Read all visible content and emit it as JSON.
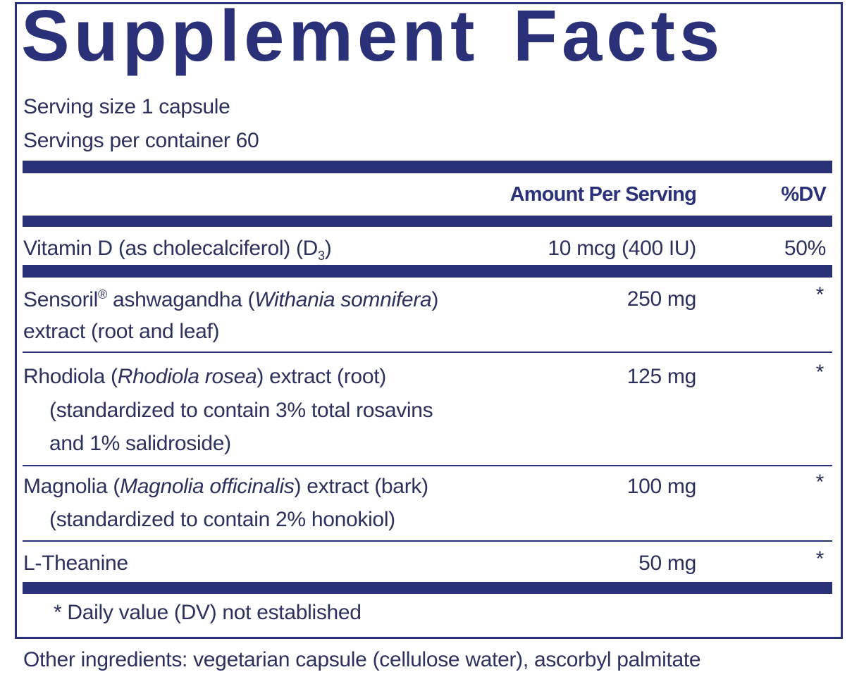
{
  "title": "Supplement Facts",
  "serving_size": "Serving size  1 capsule",
  "servings_per_container": "Servings per container  60",
  "header": {
    "amount": "Amount Per Serving",
    "dv": "%DV"
  },
  "rows": [
    {
      "name": "Vitamin D (as cholecalciferol) (D",
      "sub": "3",
      "sub_close": ")",
      "amount": "10 mcg (400 IU)",
      "dv": "50%"
    },
    {
      "name_a": "Sensoril",
      "sup": "®",
      "name_b": " ashwagandha (",
      "latin": "Withania somnifera",
      "name_c": ")",
      "line2": "extract (root and leaf)",
      "amount": "250 mg",
      "dv": "*"
    },
    {
      "name_a": "Rhodiola (",
      "latin": "Rhodiola rosea",
      "name_c": ") extract (root)",
      "line2": "(standardized to contain 3% total rosavins",
      "line3": "and 1% salidroside)",
      "amount": "125 mg",
      "dv": "*"
    },
    {
      "name_a": "Magnolia (",
      "latin": "Magnolia officinalis",
      "name_c": ") extract (bark)",
      "line2": "(standardized to contain 2% honokiol)",
      "amount": "100 mg",
      "dv": "*"
    },
    {
      "name": "L-Theanine",
      "amount": "50 mg",
      "dv": "*"
    }
  ],
  "footnote": "* Daily value (DV) not established",
  "other_ingredients": "Other ingredients: vegetarian capsule (cellulose  water), ascorbyl palmitate",
  "colors": {
    "navy": "#2b3179",
    "text": "#2c305c"
  }
}
